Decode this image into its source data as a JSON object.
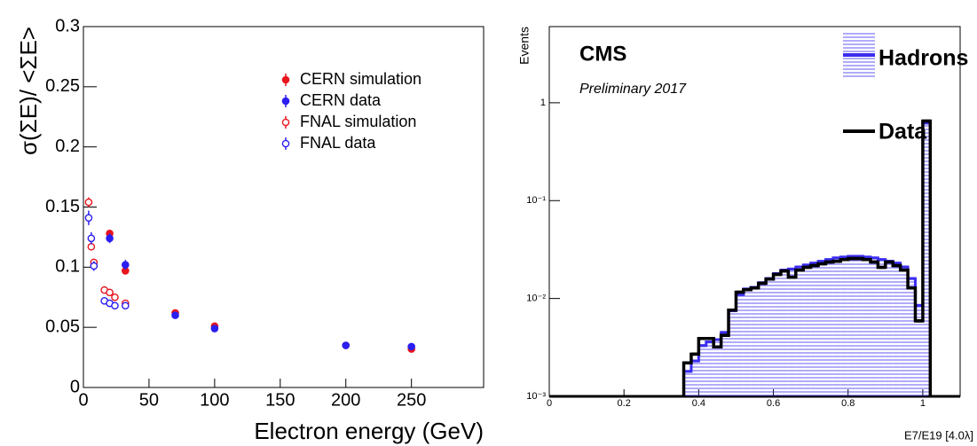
{
  "chart_data": [
    {
      "type": "scatter",
      "x_label": "Electron energy (GeV)",
      "y_label": "σ(ΣE)/ <ΣE>",
      "xlim": [
        0,
        305
      ],
      "ylim": [
        0,
        0.3
      ],
      "xticks": [
        0,
        50,
        100,
        150,
        200,
        250
      ],
      "yticks": [
        0,
        0.05,
        0.1,
        0.15,
        0.2,
        0.25,
        0.3
      ],
      "legend": "upper right",
      "series": [
        {
          "name": "CERN simulation",
          "color": "#e8141e",
          "marker": "filled",
          "x": [
            20,
            32,
            70,
            100,
            200,
            250
          ],
          "values": [
            0.128,
            0.097,
            0.062,
            0.051,
            0.035,
            0.032
          ],
          "errors": [
            0.003,
            0.003,
            0.002,
            0.002,
            0.002,
            0.002
          ]
        },
        {
          "name": "CERN data",
          "color": "#2a1ef0",
          "marker": "filled",
          "x": [
            20,
            32,
            70,
            100,
            200,
            250
          ],
          "values": [
            0.124,
            0.102,
            0.06,
            0.049,
            0.035,
            0.034
          ],
          "errors": [
            0.004,
            0.004,
            0.002,
            0.002,
            0.002,
            0.002
          ]
        },
        {
          "name": "FNAL simulation",
          "color": "#e8141e",
          "marker": "open",
          "x": [
            4,
            6,
            8,
            16,
            20,
            24,
            32
          ],
          "values": [
            0.154,
            0.117,
            0.104,
            0.081,
            0.079,
            0.075,
            0.07
          ],
          "errors": [
            0.004,
            0.003,
            0.003,
            0.002,
            0.002,
            0.002,
            0.002
          ]
        },
        {
          "name": "FNAL data",
          "color": "#2a1ef0",
          "marker": "open",
          "x": [
            4,
            6,
            8,
            16,
            20,
            24,
            32
          ],
          "values": [
            0.141,
            0.124,
            0.101,
            0.072,
            0.07,
            0.068,
            0.068
          ],
          "errors": [
            0.006,
            0.005,
            0.004,
            0.003,
            0.003,
            0.003,
            0.003
          ]
        }
      ]
    },
    {
      "type": "histogram",
      "title": "CMS",
      "subtitle": "Preliminary 2017",
      "x_label": "E7/E19 [4.0λ]",
      "y_label": "Events",
      "log_y": true,
      "xlim": [
        0,
        1.1
      ],
      "ylim": [
        0.001,
        6
      ],
      "xticks": [
        0,
        0.2,
        0.4,
        0.6,
        0.8,
        1
      ],
      "yticks": [
        {
          "value": 0.001,
          "label": "10⁻³"
        },
        {
          "value": 0.01,
          "label": "10⁻²"
        },
        {
          "value": 0.1,
          "label": "10⁻¹"
        },
        1
      ],
      "bins": [
        0.36,
        0.38,
        0.4,
        0.42,
        0.44,
        0.46,
        0.48,
        0.5,
        0.52,
        0.54,
        0.56,
        0.58,
        0.6,
        0.62,
        0.64,
        0.66,
        0.68,
        0.7,
        0.72,
        0.74,
        0.76,
        0.78,
        0.8,
        0.82,
        0.84,
        0.86,
        0.88,
        0.9,
        0.92,
        0.94,
        0.96,
        0.98,
        1.0,
        1.02
      ],
      "legend": "upper right",
      "series": [
        {
          "name": "Hadrons",
          "color": "#3b2df0",
          "style": "hatched",
          "values": [
            0.0018,
            0.0023,
            0.0033,
            0.0036,
            0.0038,
            0.0045,
            0.0075,
            0.011,
            0.0125,
            0.013,
            0.0145,
            0.016,
            0.018,
            0.0195,
            0.02,
            0.021,
            0.022,
            0.023,
            0.024,
            0.025,
            0.026,
            0.0265,
            0.027,
            0.027,
            0.0265,
            0.026,
            0.025,
            0.024,
            0.023,
            0.021,
            0.016,
            0.0085,
            0.62
          ]
        },
        {
          "name": "Data",
          "color": "#000000",
          "style": "line",
          "values": [
            0.0022,
            0.0027,
            0.0039,
            0.0039,
            0.0032,
            0.0042,
            0.0076,
            0.0116,
            0.0123,
            0.0128,
            0.0143,
            0.0158,
            0.0176,
            0.0191,
            0.0165,
            0.0195,
            0.0208,
            0.0217,
            0.0226,
            0.0236,
            0.024,
            0.025,
            0.0256,
            0.0256,
            0.025,
            0.0236,
            0.0208,
            0.0236,
            0.0217,
            0.0195,
            0.0128,
            0.0059,
            0.65
          ]
        }
      ]
    }
  ]
}
